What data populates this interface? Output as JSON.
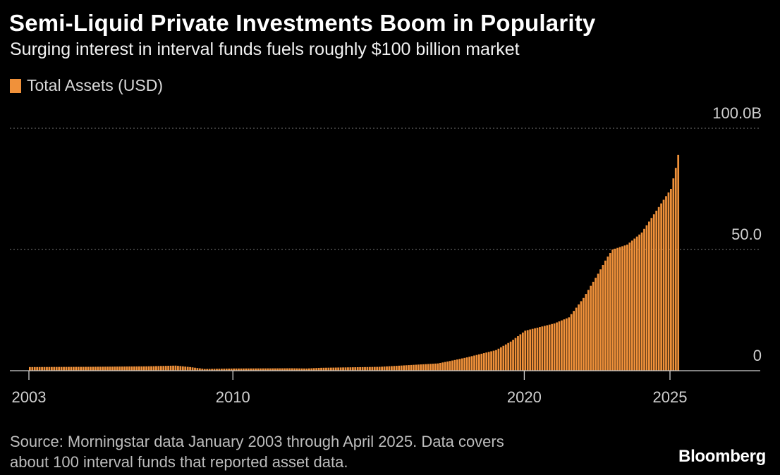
{
  "header": {
    "title": "Semi-Liquid Private Investments Boom in Popularity",
    "subtitle": "Surging interest in interval funds fuels roughly $100 billion market"
  },
  "legend": {
    "label": "Total Assets (USD)",
    "color": "#f0913a"
  },
  "footer": {
    "source_line1": "Source: Morningstar data January 2003 through April 2025. Data covers",
    "source_line2": "about 100 interval funds that reported asset data.",
    "brand": "Bloomberg"
  },
  "chart_data": {
    "type": "bar",
    "series_name": "Total Assets (USD)",
    "unit": "USD billions",
    "x_ticks": [
      "2003",
      "2010",
      "2020",
      "2025"
    ],
    "y_ticks": [
      "0",
      "50.0",
      "100.0B"
    ],
    "ylim": [
      0,
      100
    ],
    "grid": true,
    "legend_position": "top-left",
    "xlim_years": [
      2003,
      2028
    ],
    "anchor_points": [
      [
        2003.0,
        1.5
      ],
      [
        2005.0,
        1.6
      ],
      [
        2007.0,
        1.8
      ],
      [
        2008.0,
        2.1
      ],
      [
        2008.5,
        1.5
      ],
      [
        2009.0,
        0.7
      ],
      [
        2010.0,
        0.9
      ],
      [
        2012.0,
        1.0
      ],
      [
        2012.5,
        0.9
      ],
      [
        2013.0,
        1.2
      ],
      [
        2015.0,
        1.6
      ],
      [
        2017.0,
        3.0
      ],
      [
        2017.5,
        4.2
      ],
      [
        2018.0,
        5.5
      ],
      [
        2019.0,
        8.5
      ],
      [
        2019.5,
        12.0
      ],
      [
        2020.0,
        16.5
      ],
      [
        2020.5,
        18.0
      ],
      [
        2021.0,
        19.5
      ],
      [
        2021.5,
        22.0
      ],
      [
        2022.0,
        30.0
      ],
      [
        2022.5,
        40.0
      ],
      [
        2022.8,
        46.5
      ],
      [
        2023.0,
        50.0
      ],
      [
        2023.5,
        52.0
      ],
      [
        2024.0,
        57.0
      ],
      [
        2024.5,
        66.0
      ],
      [
        2025.0,
        75.0
      ],
      [
        2025.25,
        88.0
      ],
      [
        2025.33,
        92.5
      ]
    ],
    "last_value": 89.0
  }
}
